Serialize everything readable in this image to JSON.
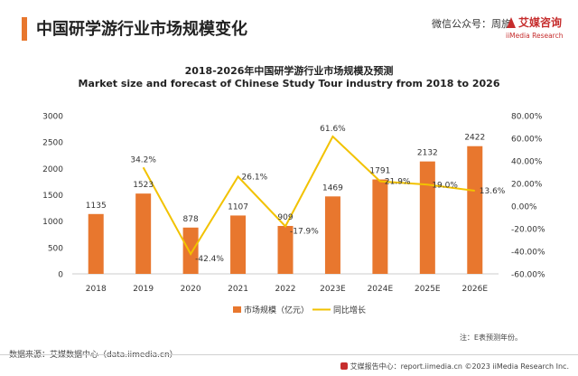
{
  "header": {
    "title": "中国研学游行业市场规模变化",
    "watermark": "微信公众号：周旅",
    "logo_cn": "艾媒咨询",
    "logo_en": "iiMedia Research"
  },
  "footer": {
    "source": "数据来源：艾媒数据中心（data.iimedia.cn）",
    "note": "注：E表预测年份。",
    "report": "艾媒报告中心：report.iimedia.cn ©2023  iiMedia Research  Inc."
  },
  "colors": {
    "bar": "#e8772e",
    "line": "#f2c200",
    "accent": "#e8772e",
    "brand": "#c62d2d"
  },
  "chart_data": {
    "type": "bar",
    "title": "2018-2026年中国研学游行业市场规模及预测",
    "subtitle": "Market size and forecast of Chinese Study Tour industry from 2018 to 2026",
    "categories": [
      "2018",
      "2019",
      "2020",
      "2021",
      "2022",
      "2023E",
      "2024E",
      "2025E",
      "2026E"
    ],
    "series": [
      {
        "name": "市场规模（亿元）",
        "type": "bar",
        "axis": "left",
        "values": [
          1135,
          1523,
          878,
          1107,
          909,
          1469,
          1791,
          2132,
          2422
        ],
        "labels": [
          "1135",
          "1523",
          "878",
          "1107",
          "909",
          "1469",
          "1791",
          "2132",
          "2422"
        ]
      },
      {
        "name": "同比增长",
        "type": "line",
        "axis": "right",
        "values": [
          null,
          34.2,
          -42.4,
          26.1,
          -17.9,
          61.6,
          21.9,
          19.0,
          13.6
        ],
        "labels": [
          "",
          "34.2%",
          "-42.4%",
          "26.1%",
          "-17.9%",
          "61.6%",
          "21.9%",
          "19.0%",
          "13.6%"
        ]
      }
    ],
    "ylim_left": [
      0,
      3000
    ],
    "ylim_right": [
      -60,
      80
    ],
    "left_ticks": [
      "0",
      "500",
      "1000",
      "1500",
      "2000",
      "2500",
      "3000"
    ],
    "right_ticks": [
      "-60.00%",
      "-40.00%",
      "-20.00%",
      "0.00%",
      "20.00%",
      "40.00%",
      "60.00%",
      "80.00%"
    ],
    "legend_position": "bottom",
    "grid": false
  }
}
